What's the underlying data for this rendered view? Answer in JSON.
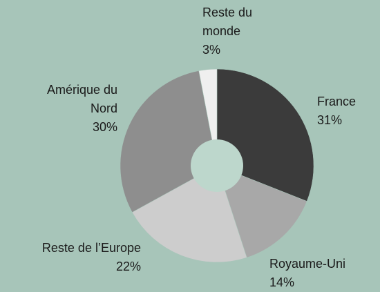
{
  "chart_data": {
    "type": "pie",
    "categories": [
      "France",
      "Royaume-Uni",
      "Reste de l’Europe",
      "Amérique du Nord",
      "Reste du monde"
    ],
    "values": [
      31,
      14,
      22,
      30,
      3
    ],
    "value_labels": [
      "31%",
      "14%",
      "22%",
      "30%",
      "3%"
    ],
    "colors": [
      "#3b3b3b",
      "#a8a8a8",
      "#cdcdcd",
      "#8e8e8e",
      "#efefef"
    ],
    "donut": true
  }
}
